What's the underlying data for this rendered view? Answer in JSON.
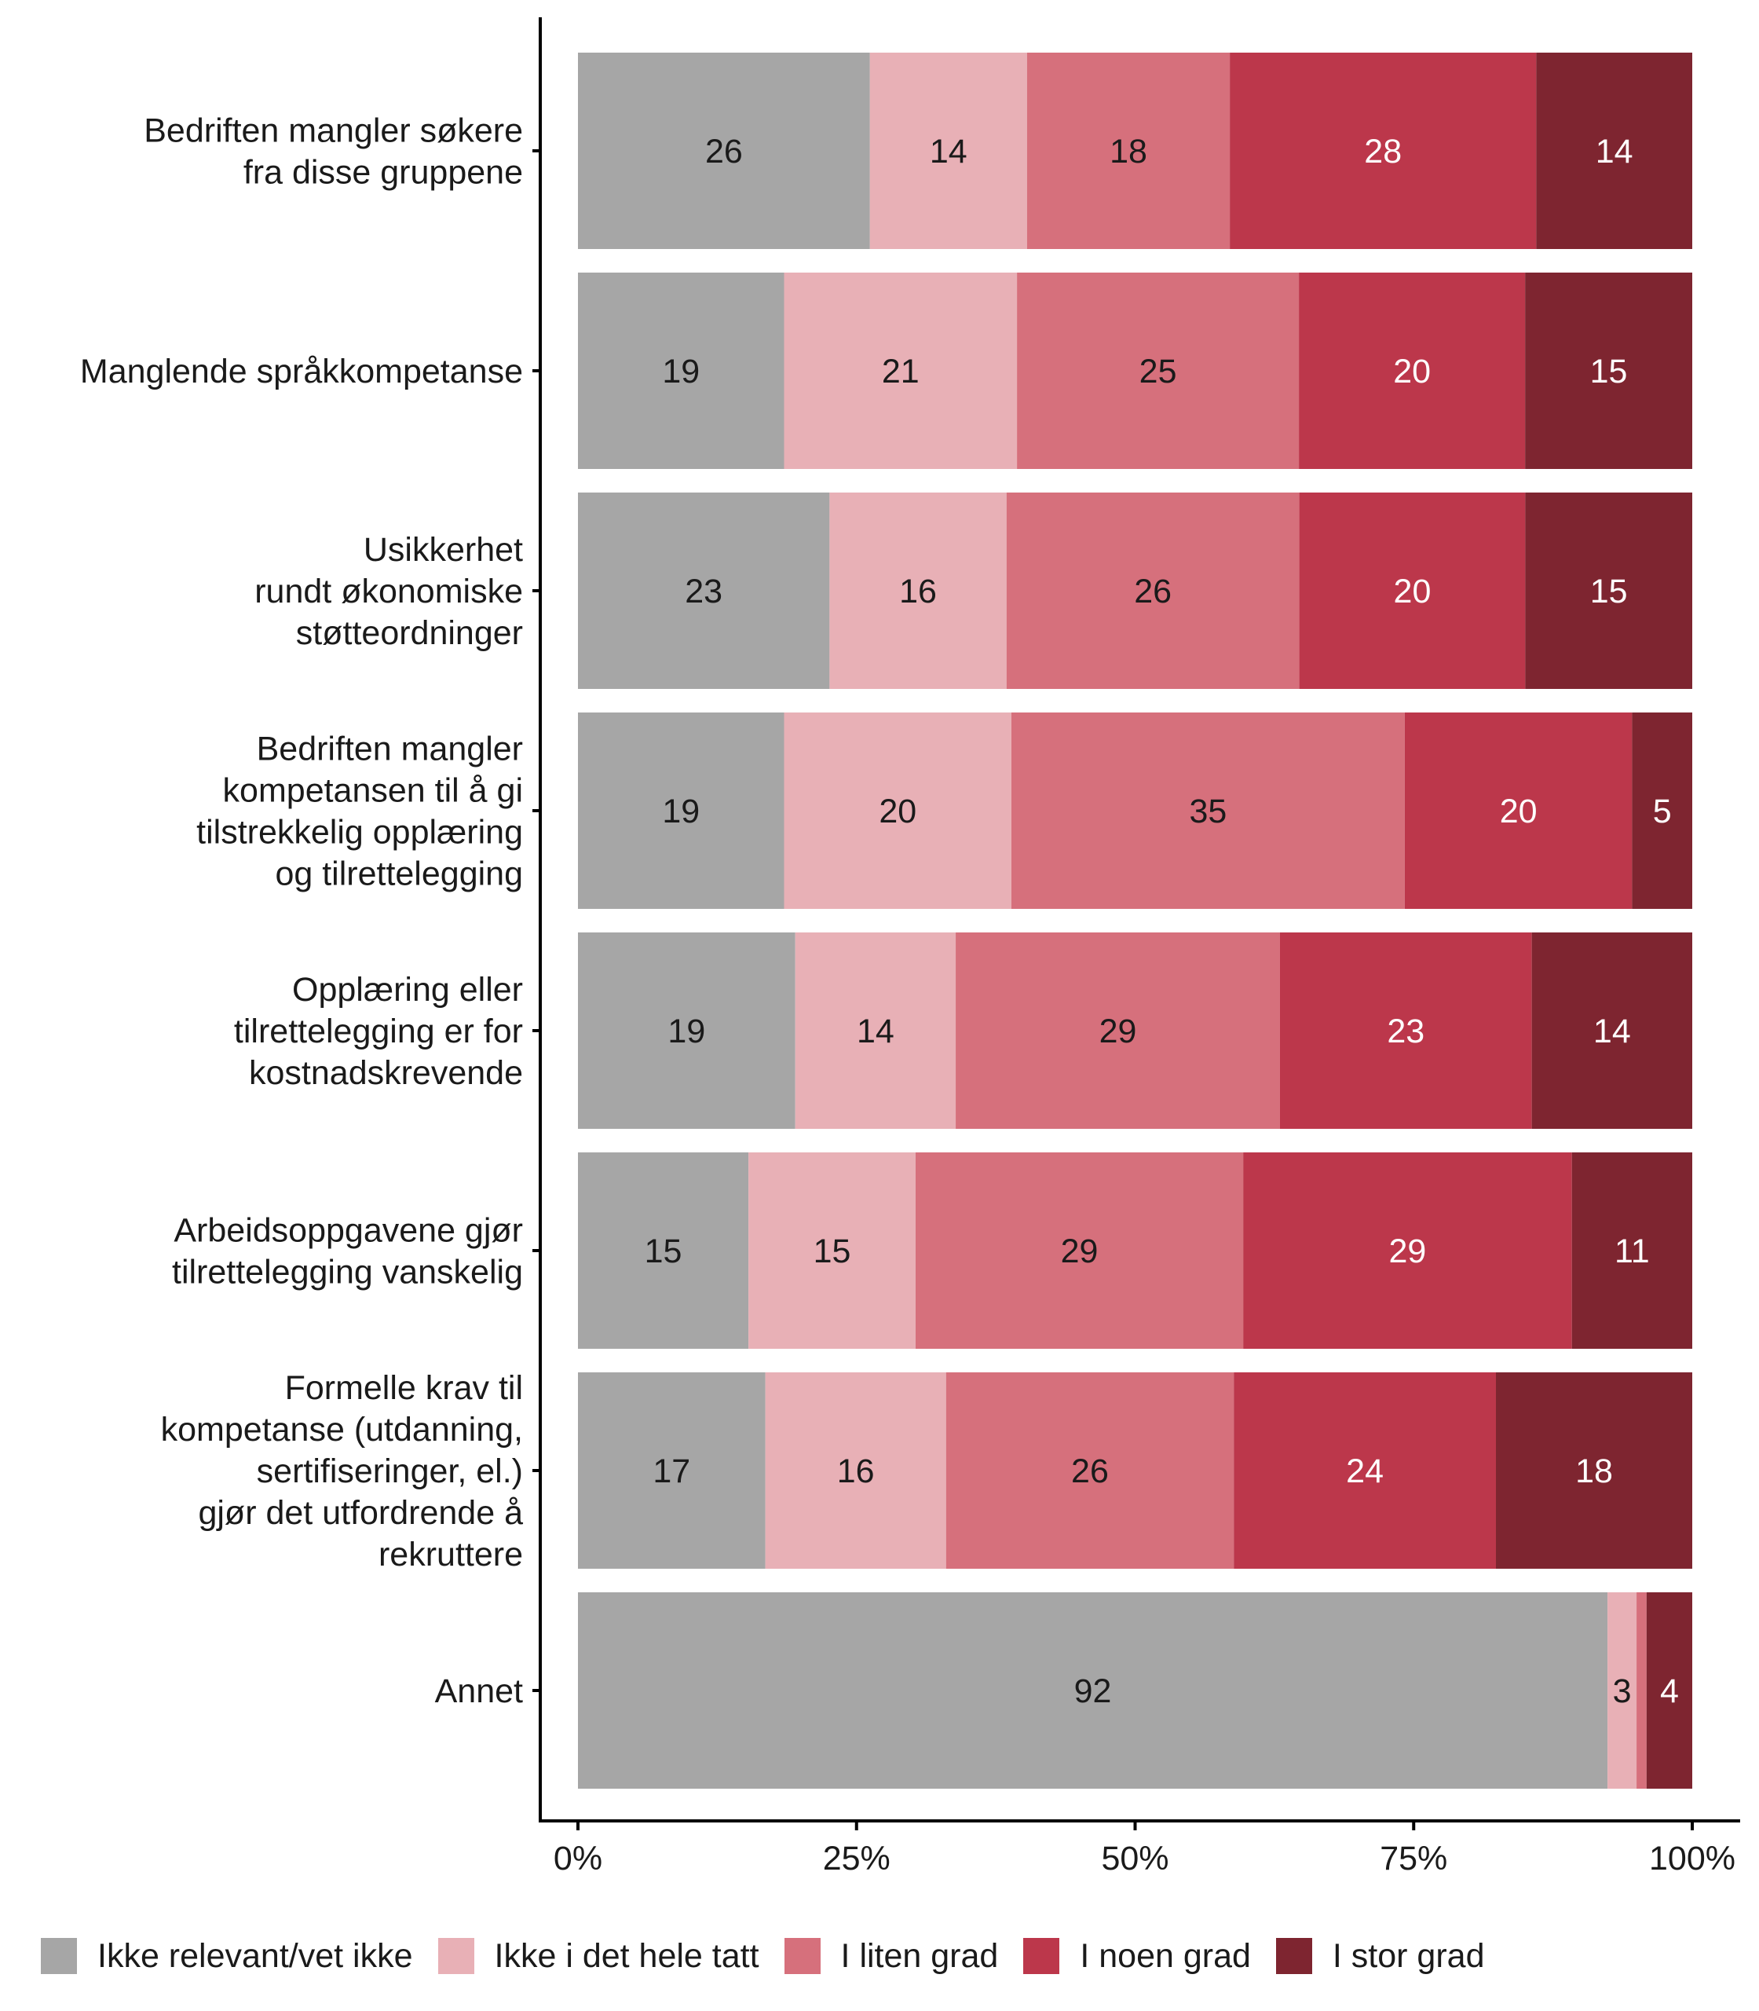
{
  "chart_data": {
    "type": "bar",
    "orientation": "horizontal",
    "stacked": true,
    "normalized": true,
    "title": "",
    "xlabel": "",
    "ylabel": "",
    "xlim": [
      0,
      100
    ],
    "x_ticks": [
      "0%",
      "25%",
      "50%",
      "75%",
      "100%"
    ],
    "x_tick_values": [
      0,
      25,
      50,
      75,
      100
    ],
    "grid": false,
    "legend_position": "bottom",
    "categories": [
      [
        "Bedriften mangler søkere",
        "fra disse gruppene"
      ],
      [
        "Manglende språkkompetanse"
      ],
      [
        "Usikkerhet",
        "rundt økonomiske",
        "støtteordninger"
      ],
      [
        "Bedriften mangler",
        "kompetansen til å gi",
        "tilstrekkelig opplæring",
        "og tilrettelegging"
      ],
      [
        "Opplæring eller",
        "tilrettelegging er for",
        "kostnadskrevende"
      ],
      [
        "Arbeidsoppgavene gjør",
        "tilrettelegging vanskelig"
      ],
      [
        "Formelle krav til",
        "kompetanse (utdanning,",
        "sertifiseringer, el.)",
        "gjør det utfordrende å",
        "rekruttere"
      ],
      [
        "Annet"
      ]
    ],
    "series": [
      {
        "name": "Ikke relevant/vet ikke",
        "color": "#A6A6A6",
        "label_color": "#1a1a1a",
        "values": [
          26.2,
          18.5,
          22.6,
          18.5,
          19.5,
          15.3,
          16.8,
          92.4
        ],
        "labels": [
          "26",
          "19",
          "23",
          "19",
          "19",
          "15",
          "17",
          "92"
        ]
      },
      {
        "name": "Ikke i det hele tatt",
        "color": "#E8B0B6",
        "label_color": "#1a1a1a",
        "values": [
          14.1,
          20.9,
          15.9,
          20.4,
          14.4,
          15.0,
          16.2,
          2.6
        ],
        "labels": [
          "14",
          "21",
          "16",
          "20",
          "14",
          "15",
          "16",
          "3"
        ]
      },
      {
        "name": "I liten grad",
        "color": "#D6707C",
        "label_color": "#1a1a1a",
        "values": [
          18.2,
          25.3,
          26.3,
          35.3,
          29.1,
          29.4,
          25.8,
          0.9
        ],
        "labels": [
          "18",
          "25",
          "26",
          "35",
          "29",
          "29",
          "26",
          ""
        ]
      },
      {
        "name": "I noen grad",
        "color": "#BC374B",
        "label_color": "#ffffff",
        "values": [
          27.5,
          20.3,
          20.3,
          20.4,
          22.6,
          29.5,
          23.5,
          0.0
        ],
        "labels": [
          "28",
          "20",
          "20",
          "20",
          "23",
          "29",
          "24",
          ""
        ]
      },
      {
        "name": "I stor grad",
        "color": "#7E2530",
        "label_color": "#ffffff",
        "values": [
          14.0,
          15.0,
          15.0,
          5.4,
          14.4,
          10.8,
          17.6,
          4.1
        ],
        "labels": [
          "14",
          "15",
          "15",
          "5",
          "14",
          "11",
          "18",
          "4"
        ]
      }
    ]
  }
}
